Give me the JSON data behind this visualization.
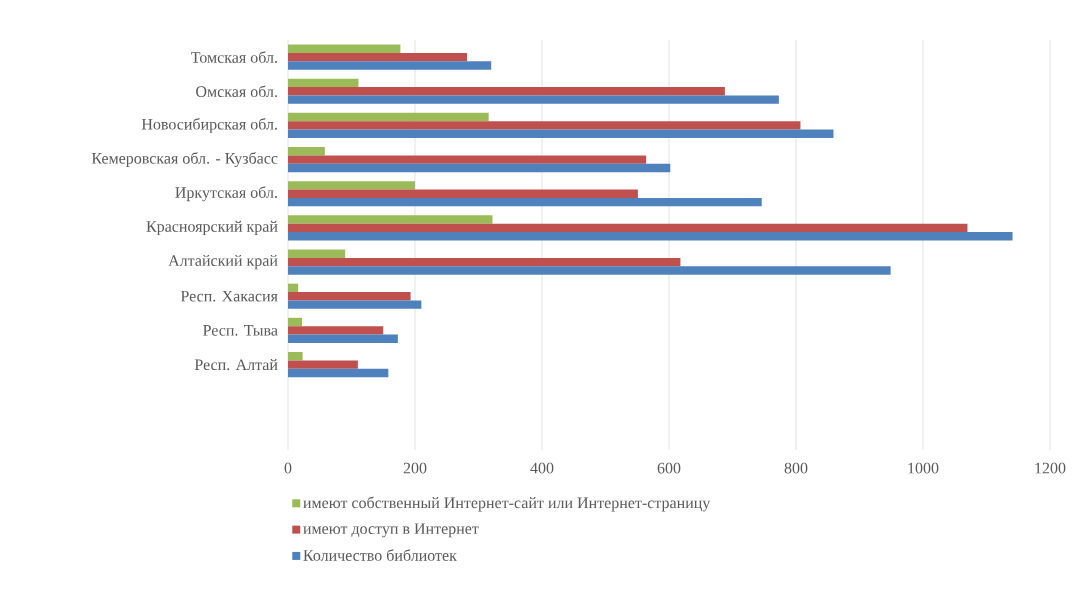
{
  "chart_data": {
    "type": "bar",
    "orientation": "horizontal",
    "categories": [
      "Томская обл.",
      "Омская обл.",
      "Новосибирская обл.",
      "Кемеровская обл. - Кузбасс",
      "Иркутская обл.",
      "Красноярский край",
      "Алтайский край",
      "Респ. Хакасия",
      "Респ. Тыва",
      "Респ. Алтай",
      null,
      null
    ],
    "series": [
      {
        "name": "имеют собственный Интернет-сайт или Интернет-страницу",
        "color": "#9bbb59",
        "values": [
          177,
          111,
          316,
          58,
          200,
          322,
          90,
          16,
          22,
          23,
          null,
          null
        ]
      },
      {
        "name": "имеют доступ в Интернет",
        "color": "#c0504d",
        "values": [
          282,
          688,
          807,
          564,
          551,
          1070,
          618,
          193,
          150,
          110,
          null,
          null
        ]
      },
      {
        "name": "Количество библиотек",
        "color": "#4f81bd",
        "values": [
          320,
          773,
          859,
          602,
          746,
          1141,
          949,
          210,
          173,
          158,
          null,
          null
        ]
      }
    ],
    "xlim": [
      0,
      1200
    ],
    "xticks": [
      0,
      200,
      400,
      600,
      800,
      1000,
      1200
    ],
    "grid": "x",
    "legend": "bottom"
  }
}
